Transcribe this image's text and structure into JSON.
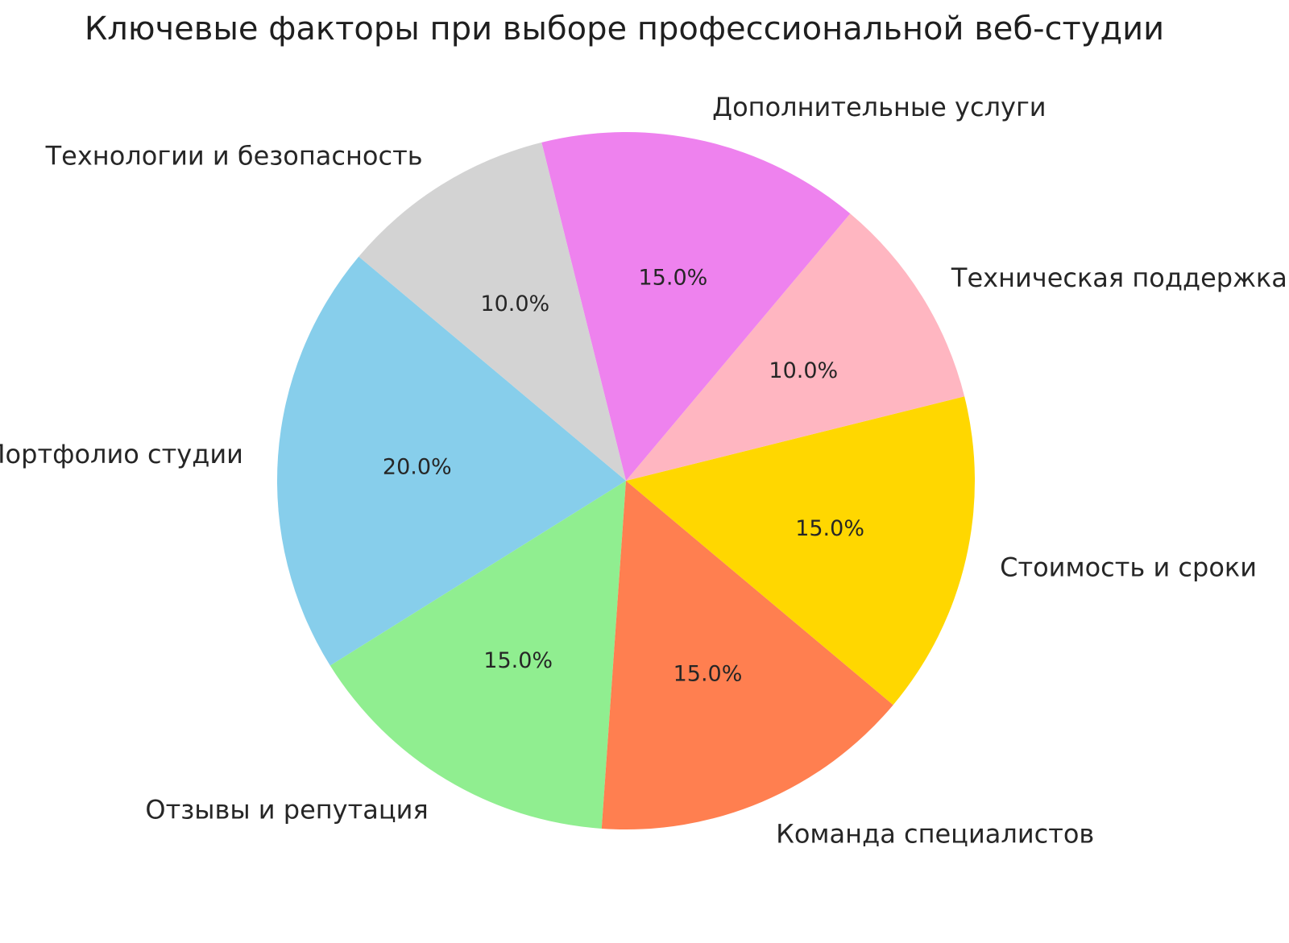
{
  "title": "Ключевые факторы при выборе профессиональной веб-студии",
  "background_color": "#ffffff",
  "text_color": "#262626",
  "chart_data": {
    "type": "pie",
    "title": "Ключевые факторы при выборе профессиональной веб-студии",
    "legend": "none",
    "startangle": 140,
    "counterclockwise": true,
    "pctdistance": 0.6,
    "labeldistance": 1.1,
    "categories": [
      "Портфолио студии",
      "Отзывы и репутация",
      "Команда специалистов",
      "Стоимость и сроки",
      "Техническая поддержка",
      "Дополнительные услуги",
      "Технологии и безопасность"
    ],
    "values": [
      20.0,
      15.0,
      15.0,
      15.0,
      10.0,
      15.0,
      10.0
    ],
    "slices": [
      {
        "label": "Портфолио студии",
        "value": 20.0,
        "pct_label": "20.0%",
        "color": "#87CEEB"
      },
      {
        "label": "Отзывы и репутация",
        "value": 15.0,
        "pct_label": "15.0%",
        "color": "#90EE90"
      },
      {
        "label": "Команда специалистов",
        "value": 15.0,
        "pct_label": "15.0%",
        "color": "#FF7F50"
      },
      {
        "label": "Стоимость и сроки",
        "value": 15.0,
        "pct_label": "15.0%",
        "color": "#FFD700"
      },
      {
        "label": "Техническая поддержка",
        "value": 10.0,
        "pct_label": "10.0%",
        "color": "#FFB6C1"
      },
      {
        "label": "Дополнительные услуги",
        "value": 15.0,
        "pct_label": "15.0%",
        "color": "#EE82EE"
      },
      {
        "label": "Технологии и безопасность",
        "value": 10.0,
        "pct_label": "10.0%",
        "color": "#D3D3D3"
      }
    ]
  }
}
